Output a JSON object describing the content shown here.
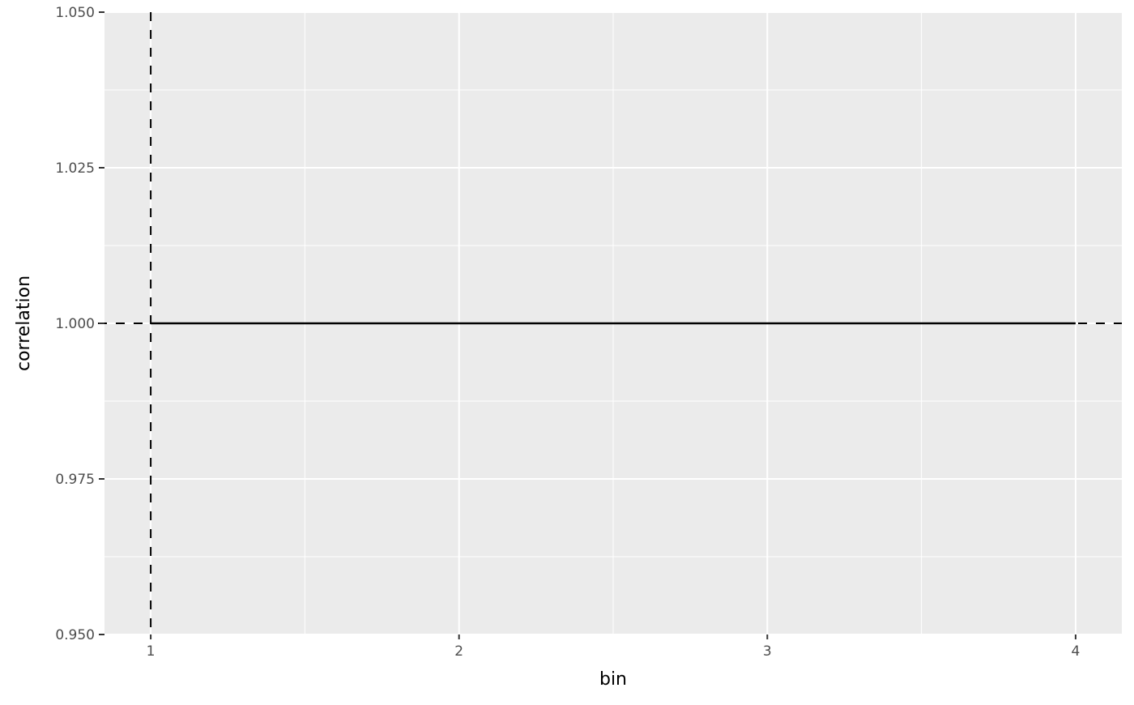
{
  "chart_data": {
    "type": "line",
    "title": "",
    "xlabel": "bin",
    "ylabel": "correlation",
    "x": [
      1,
      2,
      3,
      4
    ],
    "series": [
      {
        "values": [
          1.0,
          1.0,
          1.0,
          1.0
        ],
        "color": "#000000"
      }
    ],
    "xlim": [
      0.85,
      4.15
    ],
    "ylim": [
      0.95,
      1.05
    ],
    "xticks": [
      1,
      2,
      3,
      4
    ],
    "xtick_labels": [
      "1",
      "2",
      "3",
      "4"
    ],
    "yticks": [
      0.95,
      0.975,
      1.0,
      1.025,
      1.05
    ],
    "ytick_labels": [
      "0.950",
      "0.975",
      "1.000",
      "1.025",
      "1.050"
    ],
    "reference_lines": [
      {
        "orientation": "horizontal",
        "value": 1.0,
        "style": "dashed"
      },
      {
        "orientation": "vertical",
        "value": 1,
        "style": "dashed"
      }
    ],
    "grid": true,
    "panel_background": "#EBEBEB",
    "grid_color": "#FFFFFF"
  }
}
